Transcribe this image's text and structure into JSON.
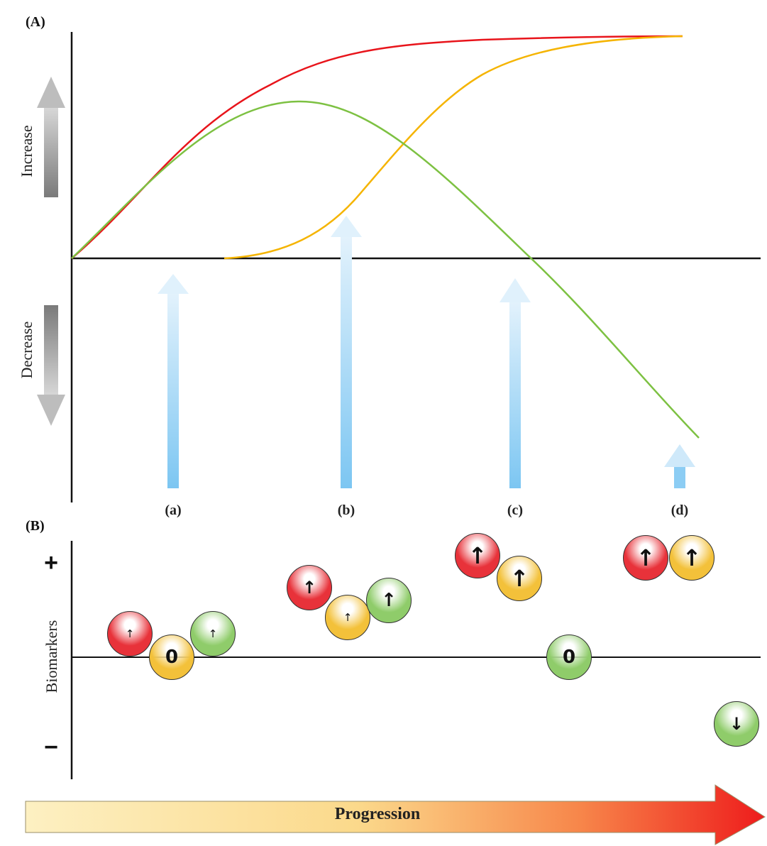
{
  "panel_a": {
    "label": "(A)",
    "increase_label": "Increase",
    "decrease_label": "Decrease",
    "stages": [
      "(a)",
      "(b)",
      "(c)",
      "(d)"
    ]
  },
  "panel_b": {
    "label": "(B)",
    "y_label": "Biomarkers",
    "plus": "+",
    "minus": "−",
    "groups": [
      {
        "stage": "(a)",
        "markers": [
          {
            "color": "red",
            "glyph": "↑"
          },
          {
            "color": "yellow",
            "glyph": "0"
          },
          {
            "color": "green",
            "glyph": "↑"
          }
        ]
      },
      {
        "stage": "(b)",
        "markers": [
          {
            "color": "red",
            "glyph": "↑"
          },
          {
            "color": "yellow",
            "glyph": "↑"
          },
          {
            "color": "green",
            "glyph": "↑"
          }
        ]
      },
      {
        "stage": "(c)",
        "markers": [
          {
            "color": "red",
            "glyph": "↑"
          },
          {
            "color": "yellow",
            "glyph": "↑"
          },
          {
            "color": "green",
            "glyph": "0"
          }
        ]
      },
      {
        "stage": "(d)",
        "markers": [
          {
            "color": "red",
            "glyph": "↑"
          },
          {
            "color": "yellow",
            "glyph": "↑"
          },
          {
            "color": "green",
            "glyph": "↓"
          }
        ]
      }
    ]
  },
  "progression_label": "Progression",
  "colors": {
    "red_curve": "#e8141b",
    "yellow_curve": "#f5b400",
    "green_curve": "#7dc142",
    "stage_arrow": "#9fd4f3",
    "ball_red": "#e8323a",
    "ball_yellow": "#f3c13a",
    "ball_green": "#8fcc6a"
  }
}
